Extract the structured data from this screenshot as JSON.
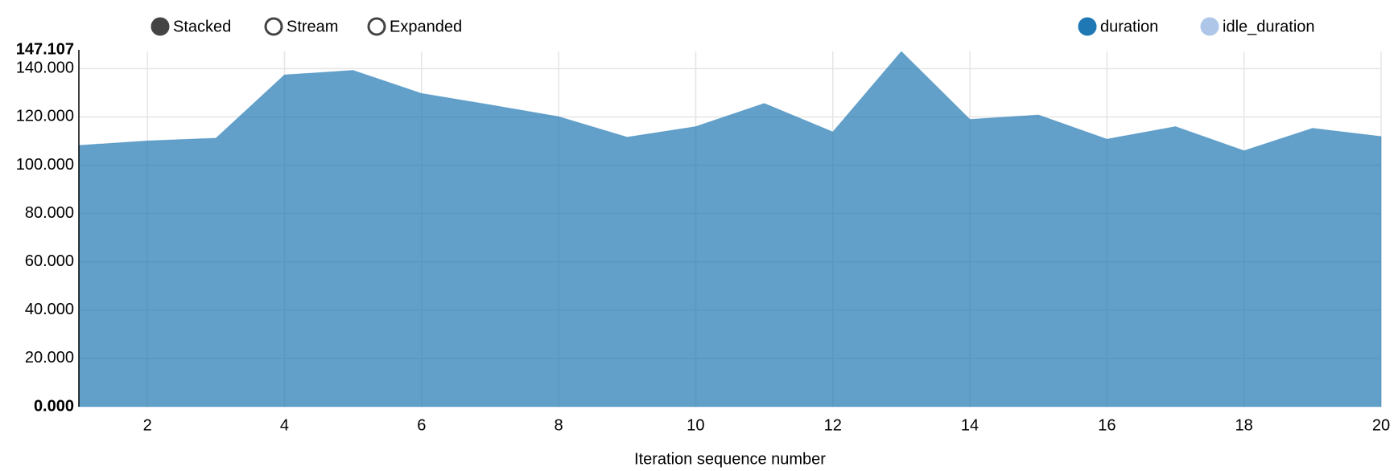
{
  "chart_data": {
    "type": "area",
    "stacked": true,
    "controls": [
      "Stacked",
      "Stream",
      "Expanded"
    ],
    "selected_control": "Stacked",
    "x_label": "Iteration sequence number",
    "x": [
      1,
      2,
      3,
      4,
      5,
      6,
      7,
      8,
      9,
      10,
      11,
      12,
      13,
      14,
      15,
      16,
      17,
      18,
      19,
      20
    ],
    "series": [
      {
        "name": "duration",
        "color": "#1f77b4",
        "disabled": false,
        "values": [
          108.2,
          110.1,
          111.2,
          137.4,
          139.3,
          129.7,
          125.0,
          120.1,
          111.6,
          116.0,
          125.6,
          113.8,
          147.107,
          119.0,
          120.8,
          110.8,
          116.0,
          106.0,
          115.3,
          111.9
        ]
      },
      {
        "name": "idle_duration",
        "color": "#aec7e8",
        "disabled": true,
        "values": [
          null,
          null,
          null,
          null,
          null,
          null,
          null,
          null,
          null,
          null,
          null,
          null,
          null,
          null,
          null,
          null,
          null,
          null,
          null,
          null
        ]
      }
    ],
    "xlim": [
      1,
      20
    ],
    "xticks": [
      2,
      4,
      6,
      8,
      10,
      12,
      14,
      16,
      18,
      20
    ],
    "ylim": [
      0,
      147.107
    ],
    "yticks": [
      {
        "value": 0,
        "label": "0.000"
      },
      {
        "value": 20,
        "label": "20.000"
      },
      {
        "value": 40,
        "label": "40.000"
      },
      {
        "value": 60,
        "label": "60.000"
      },
      {
        "value": 80,
        "label": "80.000"
      },
      {
        "value": 100,
        "label": "100.000"
      },
      {
        "value": 120,
        "label": "120.000"
      },
      {
        "value": 140,
        "label": "140.000"
      },
      {
        "value": 147.107,
        "label": "147.107"
      }
    ],
    "grid": true
  }
}
